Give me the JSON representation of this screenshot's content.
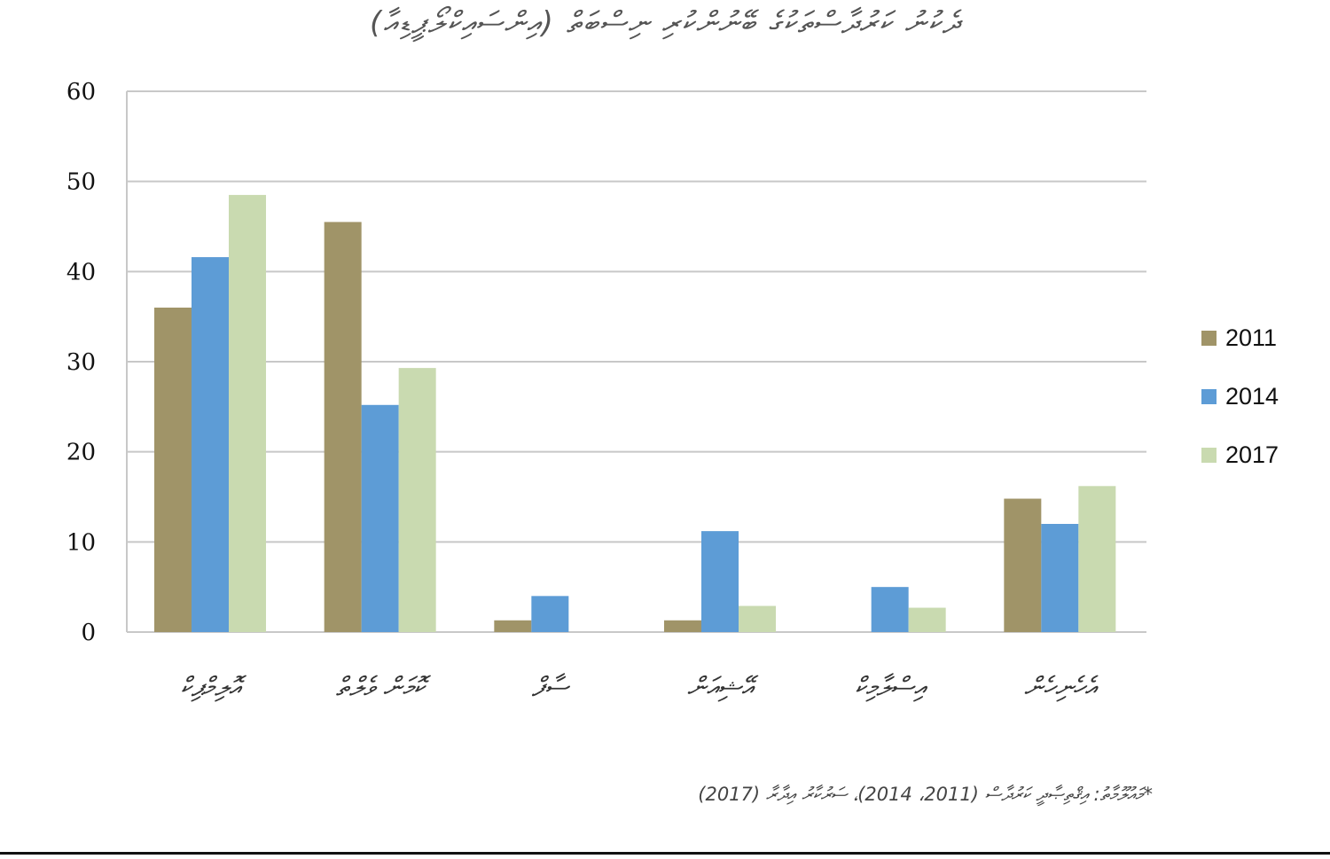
{
  "chart_data": {
    "type": "bar",
    "title": "ދެކުނު ކަރުދާސްތަކުގެ ބޭނުންކުރި ނިސްބަތް (އިންސައިކްލޯޕީޑިއާ)",
    "categories": [
      "އޮލިމްޕިކް",
      "ކޮމަން ވެލްތް",
      "ސާފް",
      "އޭޝިއަން",
      "އިސްލާމިކް",
      "އެހެނިހެން"
    ],
    "series": [
      {
        "name": "2011",
        "color": "#a09468",
        "values": [
          36,
          45.5,
          1.3,
          1.3,
          null,
          14.8
        ]
      },
      {
        "name": "2014",
        "color": "#5d9cd6",
        "values": [
          41.6,
          25.2,
          4,
          11.2,
          5,
          12
        ]
      },
      {
        "name": "2017",
        "color": "#c9dab0",
        "values": [
          48.5,
          29.3,
          null,
          2.9,
          2.7,
          16.2
        ]
      }
    ],
    "ylim": [
      0,
      60
    ],
    "yticks": [
      0,
      10,
      20,
      30,
      40,
      50,
      60
    ],
    "grid": true,
    "legend_position": "right",
    "xlabel": "",
    "ylabel": ""
  },
  "footnote": "*މައުލޫމާތު: އިޤްތިޞާދީ ކަރުދާސް (2011، 2014)، ސަރުކާރު އިދާރާ (2017)"
}
